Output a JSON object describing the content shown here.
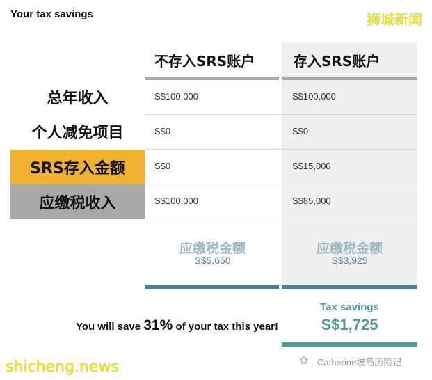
{
  "title": "Your tax savings",
  "brand": "狮城新闻",
  "columns": [
    "不存入SRS账户",
    "存入SRS账户"
  ],
  "rows": [
    {
      "label": "总年收入",
      "values": [
        "S$100,000",
        "S$100,000"
      ]
    },
    {
      "label": "个人减免项目",
      "values": [
        "S$0",
        "S$0"
      ]
    },
    {
      "label": "SRS存入金额",
      "values": [
        "S$0",
        "S$15,000"
      ]
    },
    {
      "label": "应缴税收入",
      "values": [
        "S$100,000",
        "S$85,000"
      ]
    }
  ],
  "tax_due": {
    "label": "应缴税金额",
    "values": [
      "S$5,650",
      "S$3,925"
    ]
  },
  "savings": {
    "label": "Tax savings",
    "amount": "S$1,725"
  },
  "summary": {
    "prefix": "You will save ",
    "percent": "31%",
    "suffix": " of your tax this year!"
  },
  "watermark_left": "shicheng.news",
  "watermark_right": "Catherine坡岛历险记",
  "colors": {
    "srs_label_bg": "#f0b030",
    "taxable_label_bg": "#a8a8a8",
    "bar_blue": "#4f7e9c",
    "bar_teal": "#4f9a9a"
  }
}
